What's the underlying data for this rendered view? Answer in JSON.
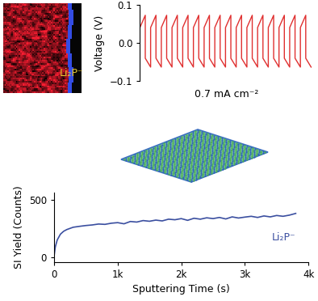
{
  "image": {
    "label": "Li₂P⁻",
    "label_color": "#e8c830"
  },
  "chart_data": [
    {
      "type": "line",
      "ylabel": "Voltage (V)",
      "annotation": "0.7 mA cm⁻²",
      "color": "#e03030",
      "tick_labels": "y",
      "xlim": [
        0,
        16.2
      ],
      "ylim": [
        -0.1,
        0.1
      ],
      "yticks": [
        {
          "value": -0.1,
          "label": "−0.1"
        },
        0.0,
        0.1
      ],
      "x": [
        0,
        0.5,
        0.5,
        1,
        1,
        1.5,
        1.5,
        2,
        2,
        2.5,
        2.5,
        3,
        3,
        3.5,
        3.5,
        4,
        4,
        4.5,
        4.5,
        5,
        5,
        5.5,
        5.5,
        6,
        6,
        6.5,
        6.5,
        7,
        7,
        7.5,
        7.5,
        8,
        8,
        8.5,
        8.5,
        9,
        9,
        9.5,
        9.5,
        10,
        10,
        10.5,
        10.5,
        11,
        11,
        11.5,
        11.5,
        12,
        12,
        12.5,
        12.5,
        13,
        13,
        13.5,
        13.5,
        14,
        14,
        14.5,
        14.5,
        15,
        15,
        15.5,
        15.5,
        16
      ],
      "values": [
        0.04,
        0.072,
        -0.04,
        -0.063,
        0.04,
        0.072,
        -0.04,
        -0.063,
        0.04,
        0.072,
        -0.04,
        -0.063,
        0.04,
        0.072,
        -0.04,
        -0.063,
        0.04,
        0.072,
        -0.04,
        -0.063,
        0.04,
        0.072,
        -0.04,
        -0.063,
        0.04,
        0.072,
        -0.04,
        -0.063,
        0.04,
        0.072,
        -0.04,
        -0.063,
        0.04,
        0.072,
        -0.04,
        -0.063,
        0.04,
        0.072,
        -0.04,
        -0.063,
        0.04,
        0.072,
        -0.04,
        -0.063,
        0.04,
        0.072,
        -0.04,
        -0.063,
        0.04,
        0.072,
        -0.04,
        -0.063,
        0.04,
        0.072,
        -0.04,
        -0.063,
        0.04,
        0.072,
        -0.04,
        -0.063,
        0.04,
        0.072,
        -0.04,
        -0.063
      ]
    },
    {
      "type": "line",
      "xlabel": "Sputtering Time (s)",
      "ylabel": "SI Yield (Counts)",
      "xlim": [
        0,
        4000
      ],
      "ylim": [
        -40,
        560
      ],
      "xticks": [
        0,
        {
          "value": 1000,
          "label": "1k"
        },
        {
          "value": 2000,
          "label": "2k"
        },
        {
          "value": 3000,
          "label": "3k"
        },
        {
          "value": 4000,
          "label": "4k"
        }
      ],
      "yticks": [
        0,
        500
      ],
      "x": [
        0,
        20,
        50,
        100,
        150,
        200,
        300,
        400,
        500,
        600,
        700,
        800,
        900,
        1000,
        1100,
        1200,
        1300,
        1400,
        1500,
        1600,
        1700,
        1800,
        1900,
        2000,
        2100,
        2200,
        2300,
        2400,
        2500,
        2600,
        2700,
        2800,
        2900,
        3000,
        3100,
        3200,
        3300,
        3400,
        3500,
        3600,
        3700,
        3800
      ],
      "series": [
        {
          "name": "Li₂P⁻",
          "color": "#3b4fa0",
          "values": [
            10,
            90,
            150,
            200,
            225,
            240,
            260,
            268,
            275,
            280,
            288,
            285,
            295,
            300,
            290,
            310,
            305,
            318,
            312,
            322,
            315,
            330,
            325,
            335,
            320,
            338,
            330,
            342,
            335,
            345,
            332,
            350,
            340,
            348,
            355,
            345,
            358,
            350,
            362,
            355,
            365,
            380
          ]
        }
      ]
    }
  ]
}
